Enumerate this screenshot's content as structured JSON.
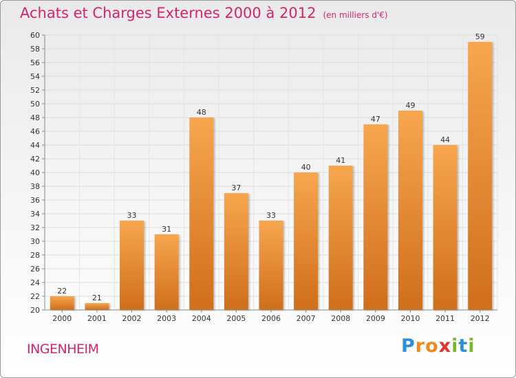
{
  "title": "Achats et Charges Externes 2000 à 2012",
  "unit": "(en milliers d'€)",
  "commune": "INGENHEIM",
  "logo": {
    "letters": [
      "P",
      "r",
      "o",
      "x",
      "i",
      "t",
      "i"
    ],
    "colors": [
      "#2d8fd8",
      "#f08a1c",
      "#f08a1c",
      "#e0312c",
      "#7ab829",
      "#2d8fd8",
      "#7ab829"
    ]
  },
  "colors": {
    "bar_top": "#f7a64f",
    "bar_bottom": "#d06e1c",
    "accent": "#d4246e"
  },
  "chart_data": {
    "type": "bar",
    "categories": [
      "2000",
      "2001",
      "2002",
      "2003",
      "2004",
      "2005",
      "2006",
      "2007",
      "2008",
      "2009",
      "2010",
      "2011",
      "2012"
    ],
    "values": [
      22,
      21,
      33,
      31,
      48,
      37,
      33,
      40,
      41,
      47,
      49,
      44,
      59
    ],
    "ylim": [
      20,
      60
    ],
    "yticks": [
      20,
      22,
      24,
      26,
      28,
      30,
      32,
      34,
      36,
      38,
      40,
      42,
      44,
      46,
      48,
      50,
      52,
      54,
      56,
      58,
      60
    ],
    "grid": true
  }
}
